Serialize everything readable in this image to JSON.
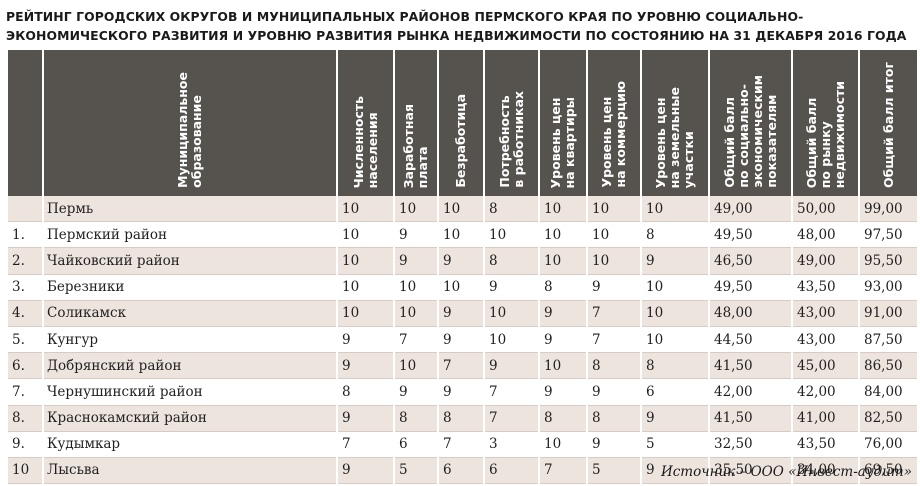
{
  "title": "РЕЙТИНГ ГОРОДСКИХ ОКРУГОВ И МУНИЦИПАЛЬНЫХ РАЙОНОВ ПЕРМСКОГО КРАЯ ПО УРОВНЮ СОЦИАЛЬНО-ЭКОНОМИЧЕСКОГО РАЗВИТИЯ И УРОВНЮ РАЗВИТИЯ РЫНКА НЕДВИЖИМОСТИ ПО СОСТОЯНИЮ НА 31 ДЕКАБРЯ 2016 ГОДА",
  "columns": [
    "",
    "Муниципальное\nобразование",
    "Численность\nнаселения",
    "Заработная\nплата",
    "Безработица",
    "Потребность\nв работниках",
    "Уровень цен\nна квартиры",
    "Уровень цен\nна коммерцию",
    "Уровень цен\nна земельные\nучастки",
    "Общий балл\nпо социально-\nэкономическим\nпоказателям",
    "Общий балл\nпо рынку\nнедвижимости",
    "Общий балл итог"
  ],
  "rows": [
    [
      "",
      "Пермь",
      "10",
      "10",
      "10",
      "8",
      "10",
      "10",
      "10",
      "49,00",
      "50,00",
      "99,00"
    ],
    [
      "1.",
      "Пермский район",
      "10",
      "9",
      "10",
      "10",
      "10",
      "10",
      "8",
      "49,50",
      "48,00",
      "97,50"
    ],
    [
      "2.",
      "Чайковский район",
      "10",
      "9",
      "9",
      "8",
      "10",
      "10",
      "9",
      "46,50",
      "49,00",
      "95,50"
    ],
    [
      "3.",
      "Березники",
      "10",
      "10",
      "10",
      "9",
      "8",
      "9",
      "10",
      "49,50",
      "43,50",
      "93,00"
    ],
    [
      "4.",
      "Соликамск",
      "10",
      "10",
      "9",
      "10",
      "9",
      "7",
      "10",
      "48,00",
      "43,00",
      "91,00"
    ],
    [
      "5.",
      "Кунгур",
      "9",
      "7",
      "9",
      "10",
      "9",
      "7",
      "10",
      "44,50",
      "43,00",
      "87,50"
    ],
    [
      "6.",
      "Добрянский район",
      "9",
      "10",
      "7",
      "9",
      "10",
      "8",
      "8",
      "41,50",
      "45,00",
      "86,50"
    ],
    [
      "7.",
      "Чернушинский район",
      "8",
      "9",
      "9",
      "7",
      "9",
      "9",
      "6",
      "42,00",
      "42,00",
      "84,00"
    ],
    [
      "8.",
      "Краснокамский район",
      "9",
      "8",
      "8",
      "7",
      "8",
      "8",
      "9",
      "41,50",
      "41,00",
      "82,50"
    ],
    [
      "9.",
      "Кудымкар",
      "7",
      "6",
      "7",
      "3",
      "10",
      "9",
      "5",
      "32,50",
      "43,50",
      "76,00"
    ],
    [
      "10",
      "Лысьва",
      "9",
      "5",
      "6",
      "6",
      "7",
      "5",
      "9",
      "35,50",
      "34,00",
      "69,50"
    ]
  ],
  "source": "Источник – ООО «Инвест-аудит»",
  "colors": {
    "header_bg": "#56524e",
    "row_shade": "#eee4de"
  }
}
